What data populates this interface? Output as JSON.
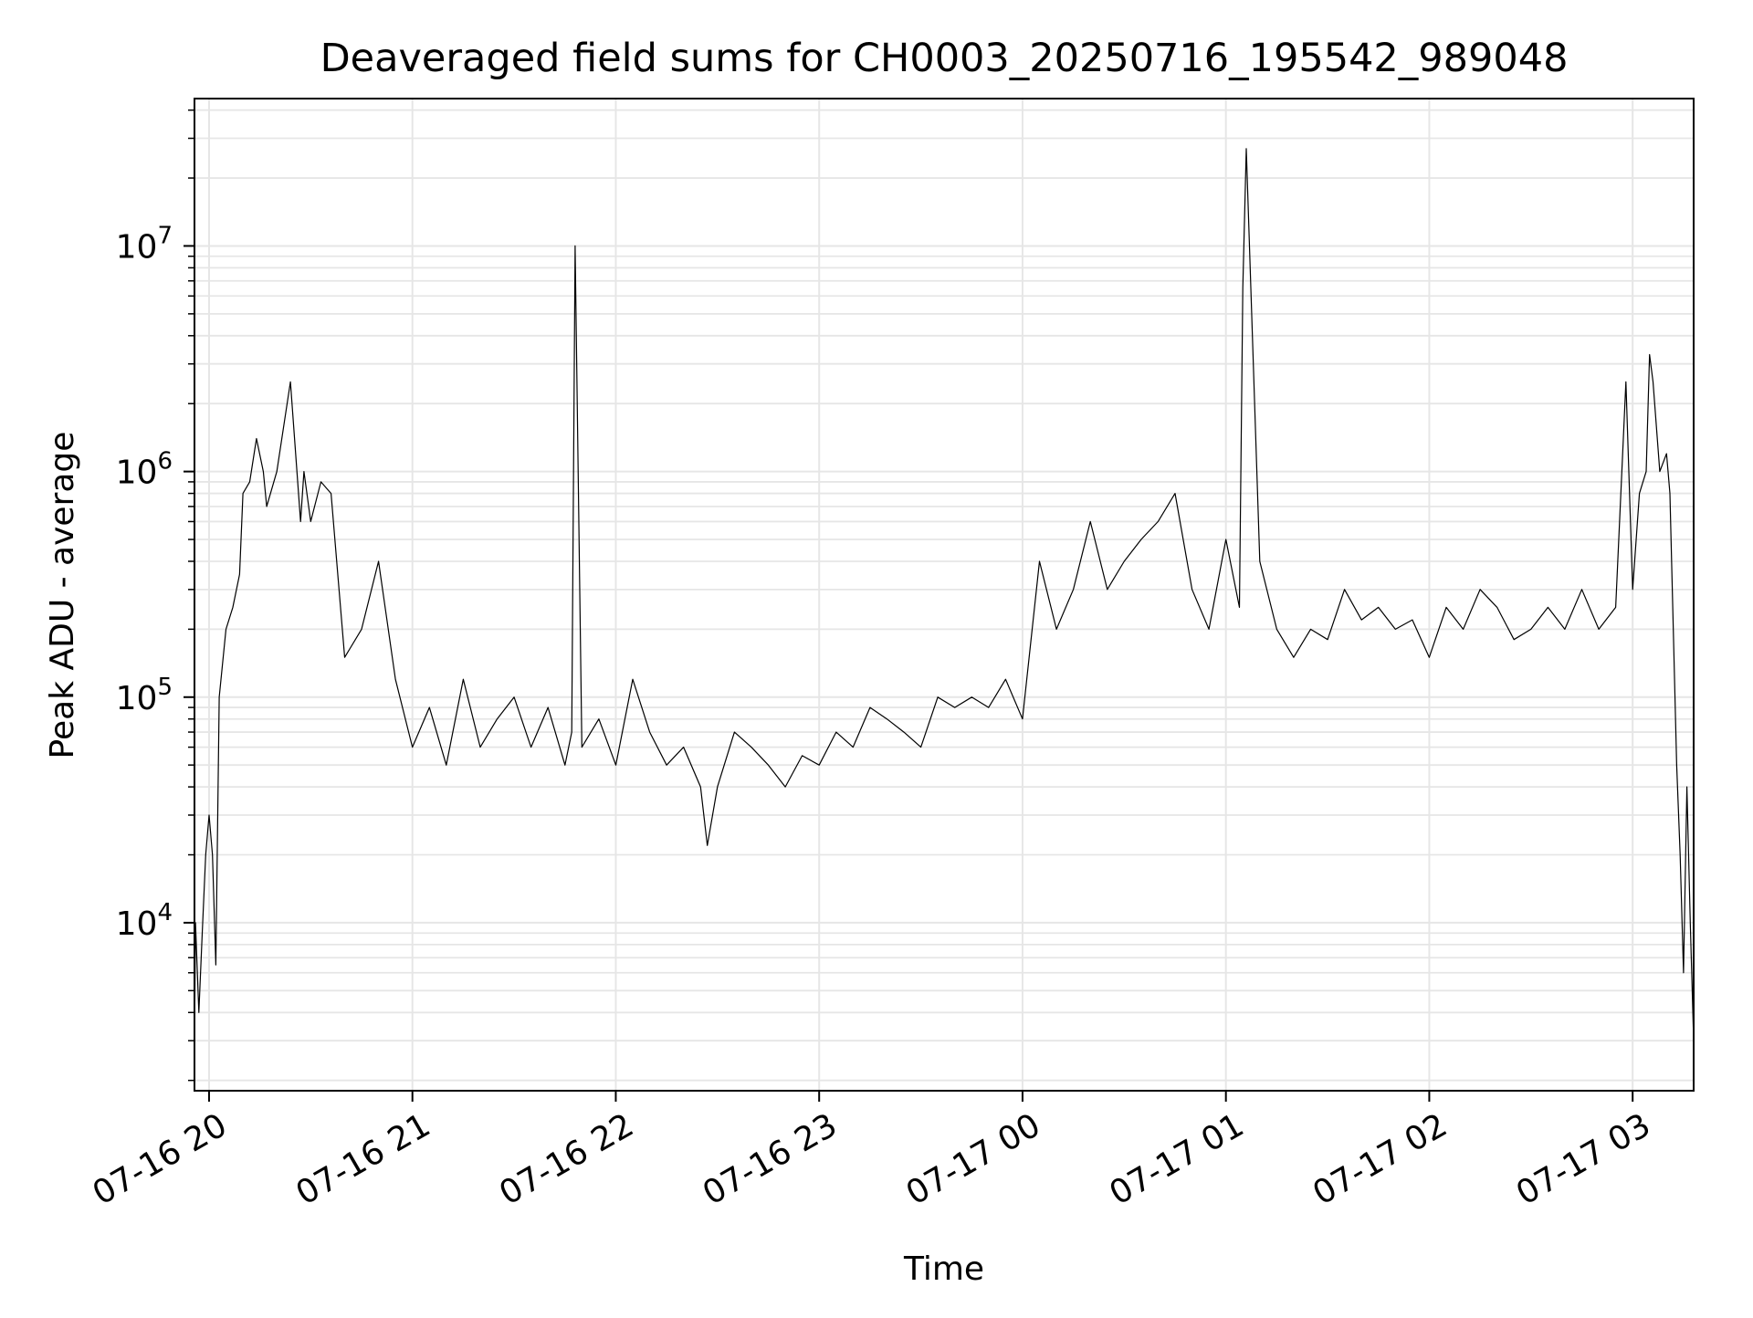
{
  "chart_data": {
    "type": "line",
    "title": "Deaveraged field sums for CH0003_20250716_195542_989048",
    "xlabel": "Time",
    "ylabel": "Peak ADU - average",
    "yscale": "log",
    "ylim": [
      1800,
      45000000
    ],
    "xlim": [
      "2025-07-16 19:55:42",
      "2025-07-17 03:18:00"
    ],
    "x_ticks": [
      {
        "t": "2025-07-16 20:00",
        "label": "07-16 20"
      },
      {
        "t": "2025-07-16 21:00",
        "label": "07-16 21"
      },
      {
        "t": "2025-07-16 22:00",
        "label": "07-16 22"
      },
      {
        "t": "2025-07-16 23:00",
        "label": "07-16 23"
      },
      {
        "t": "2025-07-17 00:00",
        "label": "07-17 00"
      },
      {
        "t": "2025-07-17 01:00",
        "label": "07-17 01"
      },
      {
        "t": "2025-07-17 02:00",
        "label": "07-17 02"
      },
      {
        "t": "2025-07-17 03:00",
        "label": "07-17 03"
      }
    ],
    "y_ticks": [
      {
        "v": 10000,
        "base": "10",
        "exp": "4"
      },
      {
        "v": 100000,
        "base": "10",
        "exp": "5"
      },
      {
        "v": 1000000,
        "base": "10",
        "exp": "6"
      },
      {
        "v": 10000000,
        "base": "10",
        "exp": "7"
      }
    ],
    "grid": true,
    "grid_color": "#e6e6e6",
    "line_color": "#000000",
    "series": [
      {
        "x": [
          "2025-07-16 19:55:42",
          "2025-07-16 19:56:00",
          "2025-07-16 19:57:00",
          "2025-07-16 19:58:00",
          "2025-07-16 19:59:00",
          "2025-07-16 20:00:00",
          "2025-07-16 20:01:00",
          "2025-07-16 20:02:00",
          "2025-07-16 20:03:00",
          "2025-07-16 20:05:00",
          "2025-07-16 20:07:00",
          "2025-07-16 20:09:00",
          "2025-07-16 20:10:00",
          "2025-07-16 20:12:00",
          "2025-07-16 20:14:00",
          "2025-07-16 20:16:00",
          "2025-07-16 20:17:00",
          "2025-07-16 20:20:00",
          "2025-07-16 20:24:00",
          "2025-07-16 20:27:00",
          "2025-07-16 20:28:00",
          "2025-07-16 20:30:00",
          "2025-07-16 20:33:00",
          "2025-07-16 20:36:00",
          "2025-07-16 20:40:00",
          "2025-07-16 20:45:00",
          "2025-07-16 20:50:00",
          "2025-07-16 20:55:00",
          "2025-07-16 21:00:00",
          "2025-07-16 21:05:00",
          "2025-07-16 21:10:00",
          "2025-07-16 21:15:00",
          "2025-07-16 21:20:00",
          "2025-07-16 21:25:00",
          "2025-07-16 21:30:00",
          "2025-07-16 21:35:00",
          "2025-07-16 21:40:00",
          "2025-07-16 21:45:00",
          "2025-07-16 21:47:00",
          "2025-07-16 21:48:00",
          "2025-07-16 21:50:00",
          "2025-07-16 21:55:00",
          "2025-07-16 22:00:00",
          "2025-07-16 22:05:00",
          "2025-07-16 22:10:00",
          "2025-07-16 22:15:00",
          "2025-07-16 22:20:00",
          "2025-07-16 22:25:00",
          "2025-07-16 22:27:00",
          "2025-07-16 22:30:00",
          "2025-07-16 22:35:00",
          "2025-07-16 22:40:00",
          "2025-07-16 22:45:00",
          "2025-07-16 22:50:00",
          "2025-07-16 22:55:00",
          "2025-07-16 23:00:00",
          "2025-07-16 23:05:00",
          "2025-07-16 23:10:00",
          "2025-07-16 23:15:00",
          "2025-07-16 23:20:00",
          "2025-07-16 23:25:00",
          "2025-07-16 23:30:00",
          "2025-07-16 23:35:00",
          "2025-07-16 23:40:00",
          "2025-07-16 23:45:00",
          "2025-07-16 23:50:00",
          "2025-07-16 23:55:00",
          "2025-07-17 00:00:00",
          "2025-07-17 00:05:00",
          "2025-07-17 00:10:00",
          "2025-07-17 00:15:00",
          "2025-07-17 00:20:00",
          "2025-07-17 00:25:00",
          "2025-07-17 00:30:00",
          "2025-07-17 00:35:00",
          "2025-07-17 00:40:00",
          "2025-07-17 00:45:00",
          "2025-07-17 00:50:00",
          "2025-07-17 00:55:00",
          "2025-07-17 01:00:00",
          "2025-07-17 01:04:00",
          "2025-07-17 01:05:00",
          "2025-07-17 01:06:00",
          "2025-07-17 01:10:00",
          "2025-07-17 01:15:00",
          "2025-07-17 01:20:00",
          "2025-07-17 01:25:00",
          "2025-07-17 01:30:00",
          "2025-07-17 01:35:00",
          "2025-07-17 01:40:00",
          "2025-07-17 01:45:00",
          "2025-07-17 01:50:00",
          "2025-07-17 01:55:00",
          "2025-07-17 02:00:00",
          "2025-07-17 02:05:00",
          "2025-07-17 02:10:00",
          "2025-07-17 02:15:00",
          "2025-07-17 02:20:00",
          "2025-07-17 02:25:00",
          "2025-07-17 02:30:00",
          "2025-07-17 02:35:00",
          "2025-07-17 02:40:00",
          "2025-07-17 02:45:00",
          "2025-07-17 02:50:00",
          "2025-07-17 02:55:00",
          "2025-07-17 02:58:00",
          "2025-07-17 03:00:00",
          "2025-07-17 03:02:00",
          "2025-07-17 03:04:00",
          "2025-07-17 03:05:00",
          "2025-07-17 03:06:00",
          "2025-07-17 03:08:00",
          "2025-07-17 03:10:00",
          "2025-07-17 03:11:00",
          "2025-07-17 03:12:00",
          "2025-07-17 03:13:00",
          "2025-07-17 03:14:00",
          "2025-07-17 03:15:00",
          "2025-07-17 03:16:00",
          "2025-07-17 03:17:00",
          "2025-07-17 03:18:00"
        ],
        "y": [
          2800,
          10000,
          4000,
          9000,
          20000,
          30000,
          20000,
          6500,
          100000,
          200000,
          250000,
          350000,
          800000,
          900000,
          1400000,
          1000000,
          700000,
          1000000,
          2500000,
          600000,
          1000000,
          600000,
          900000,
          800000,
          150000,
          200000,
          400000,
          120000,
          60000,
          90000,
          50000,
          120000,
          60000,
          80000,
          100000,
          60000,
          90000,
          50000,
          70000,
          10000000,
          60000,
          80000,
          50000,
          120000,
          70000,
          50000,
          60000,
          40000,
          22000,
          40000,
          70000,
          60000,
          50000,
          40000,
          55000,
          50000,
          70000,
          60000,
          90000,
          80000,
          70000,
          60000,
          100000,
          90000,
          100000,
          90000,
          120000,
          80000,
          400000,
          200000,
          300000,
          600000,
          300000,
          400000,
          500000,
          600000,
          800000,
          300000,
          200000,
          500000,
          250000,
          6500000,
          27000000,
          400000,
          200000,
          150000,
          200000,
          180000,
          300000,
          220000,
          250000,
          200000,
          220000,
          150000,
          250000,
          200000,
          300000,
          250000,
          180000,
          200000,
          250000,
          200000,
          300000,
          200000,
          250000,
          2500000,
          300000,
          800000,
          1000000,
          3300000,
          2500000,
          1000000,
          1200000,
          800000,
          200000,
          50000,
          20000,
          6000,
          40000,
          10000,
          3000
        ]
      }
    ]
  }
}
